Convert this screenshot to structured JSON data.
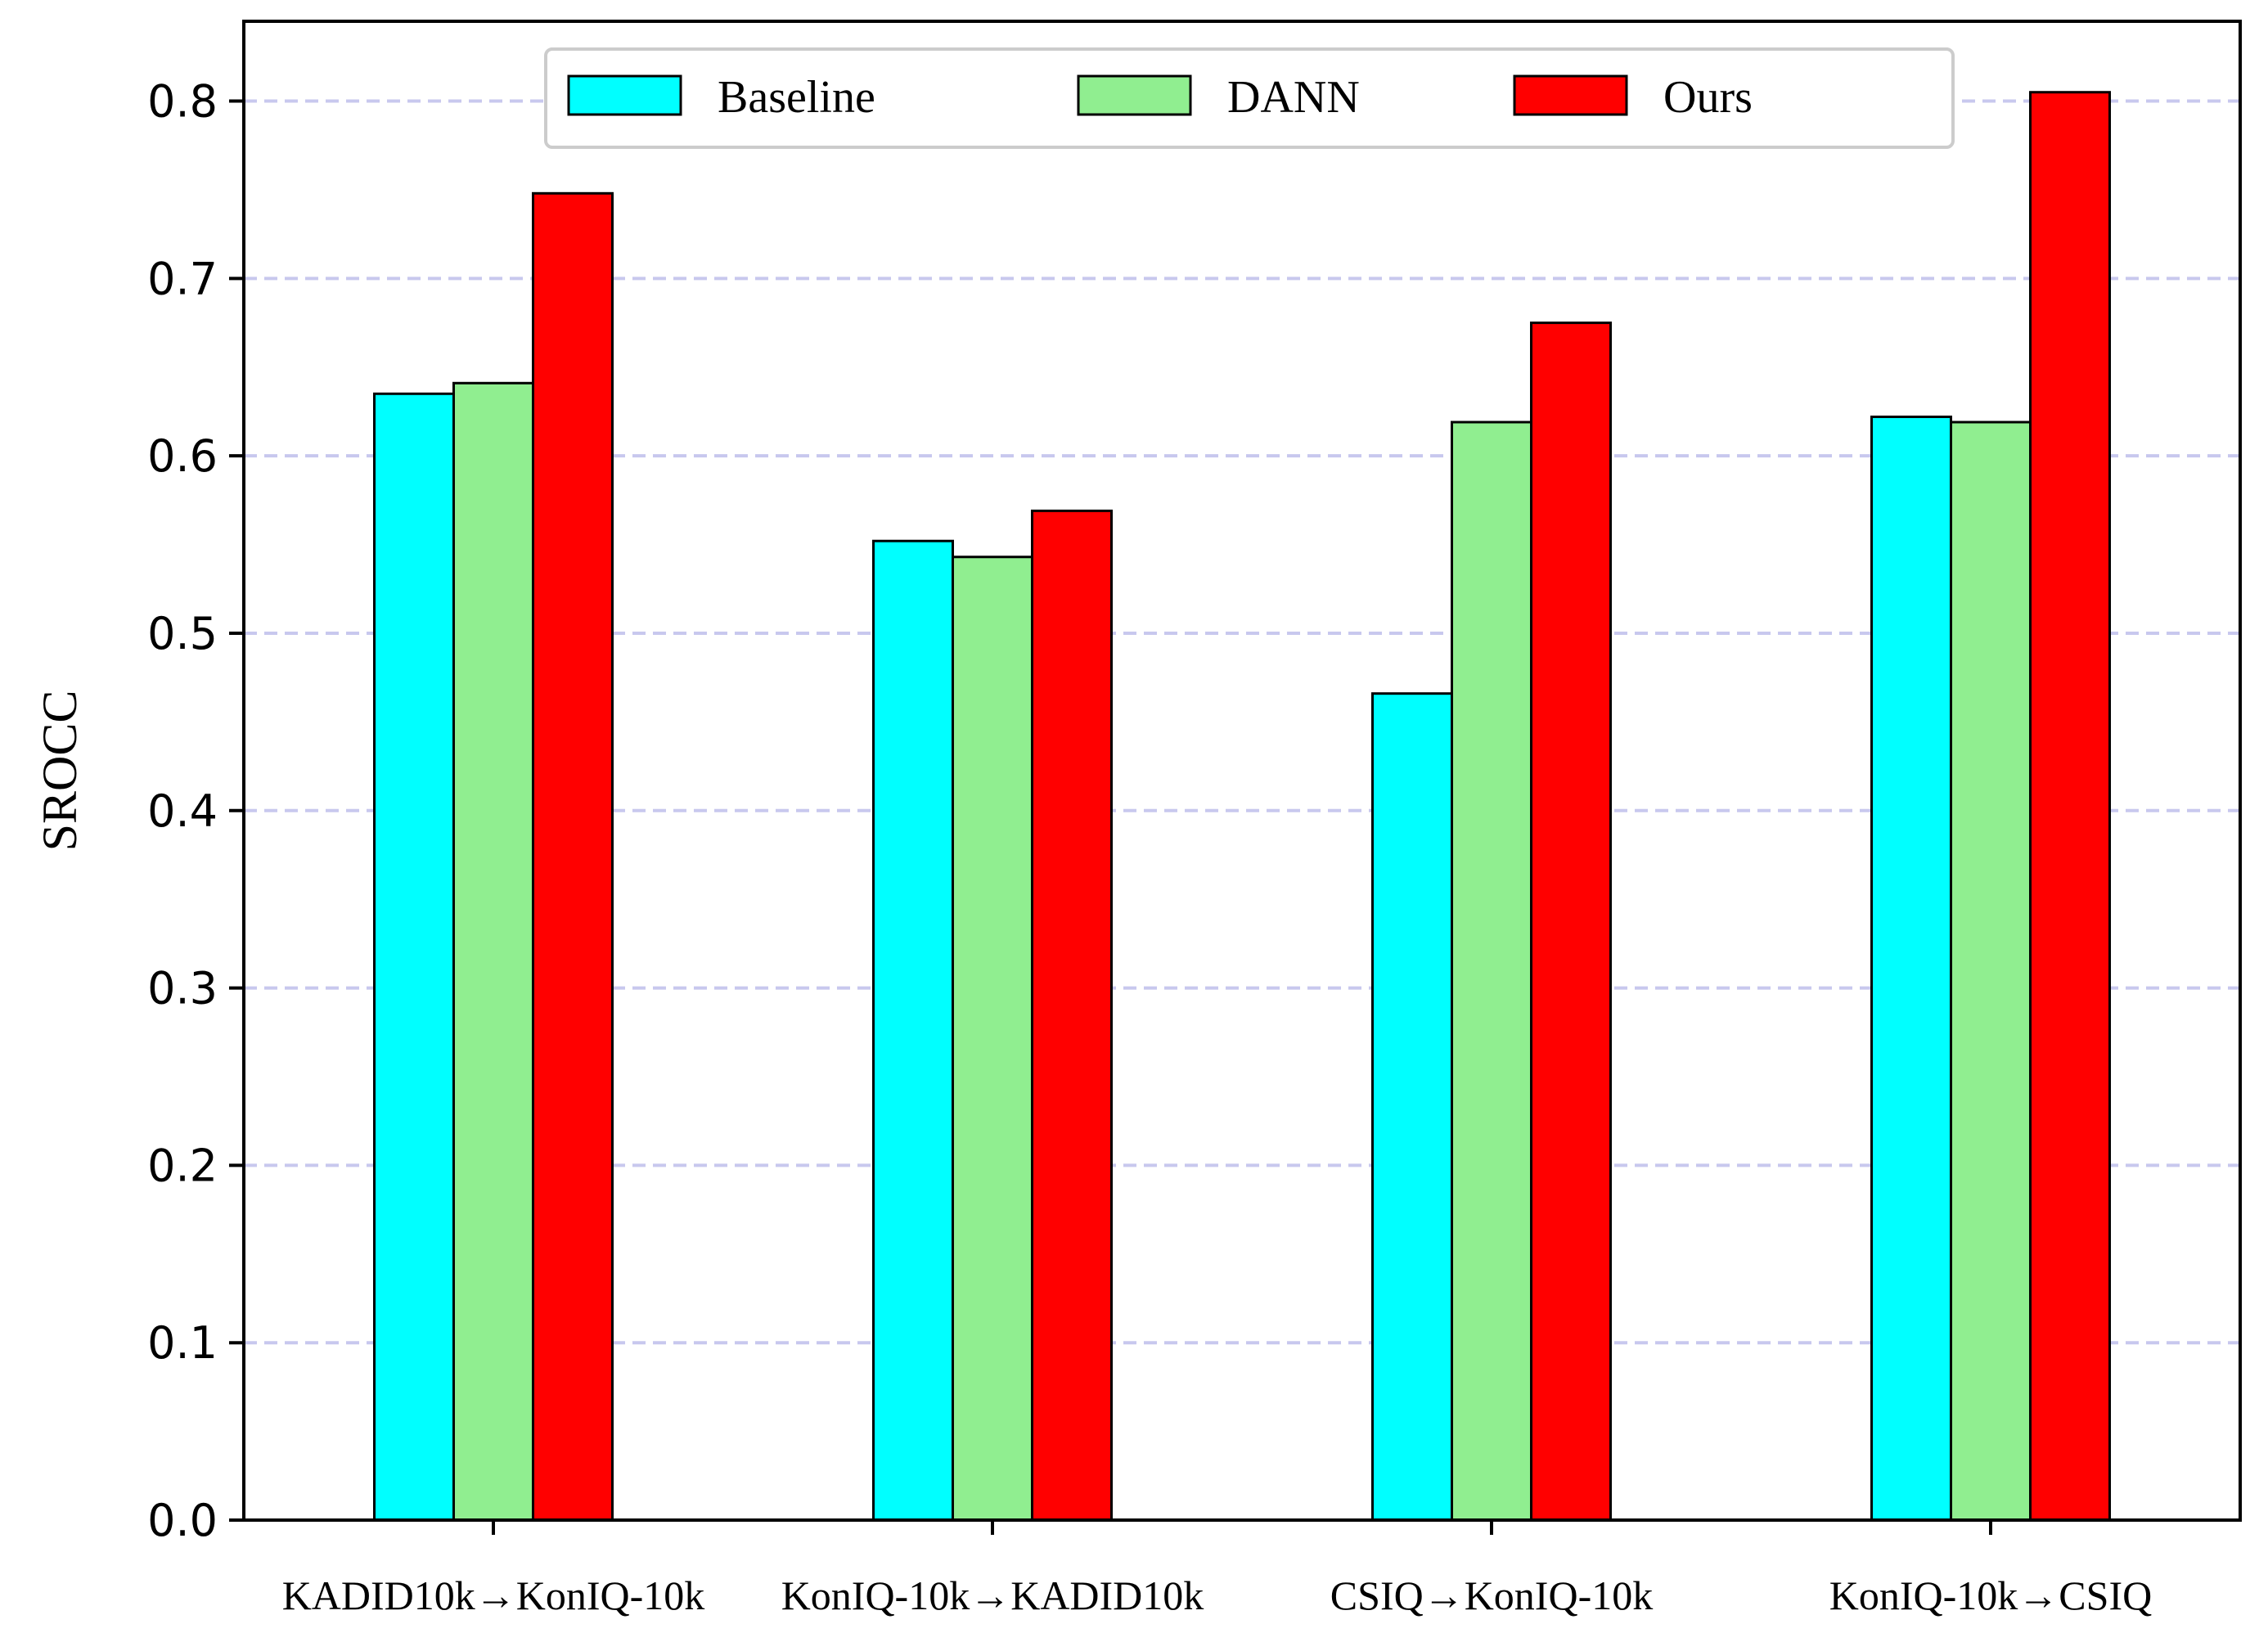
{
  "chart_data": {
    "type": "bar",
    "title": "",
    "xlabel": "",
    "ylabel": "SROCC",
    "ylim": [
      0,
      0.845
    ],
    "yticks": [
      0.0,
      0.1,
      0.2,
      0.3,
      0.4,
      0.5,
      0.6,
      0.7,
      0.8
    ],
    "ytick_labels": [
      "0.0",
      "0.1",
      "0.2",
      "0.3",
      "0.4",
      "0.5",
      "0.6",
      "0.7",
      "0.8"
    ],
    "grid": "horizontal dashed",
    "legend_position": "top-center",
    "categories": [
      "KADID10k→KonIQ-10k",
      "KonIQ-10k→KADID10k",
      "CSIQ→KonIQ-10k",
      "KonIQ-10k→CSIQ"
    ],
    "series": [
      {
        "name": "Baseline",
        "color": "#00ffff",
        "values": [
          0.635,
          0.552,
          0.466,
          0.622
        ]
      },
      {
        "name": "DANN",
        "color": "#90ee90",
        "values": [
          0.641,
          0.543,
          0.619,
          0.619
        ]
      },
      {
        "name": "Ours",
        "color": "#ff0000",
        "values": [
          0.748,
          0.569,
          0.675,
          0.805
        ]
      }
    ]
  }
}
